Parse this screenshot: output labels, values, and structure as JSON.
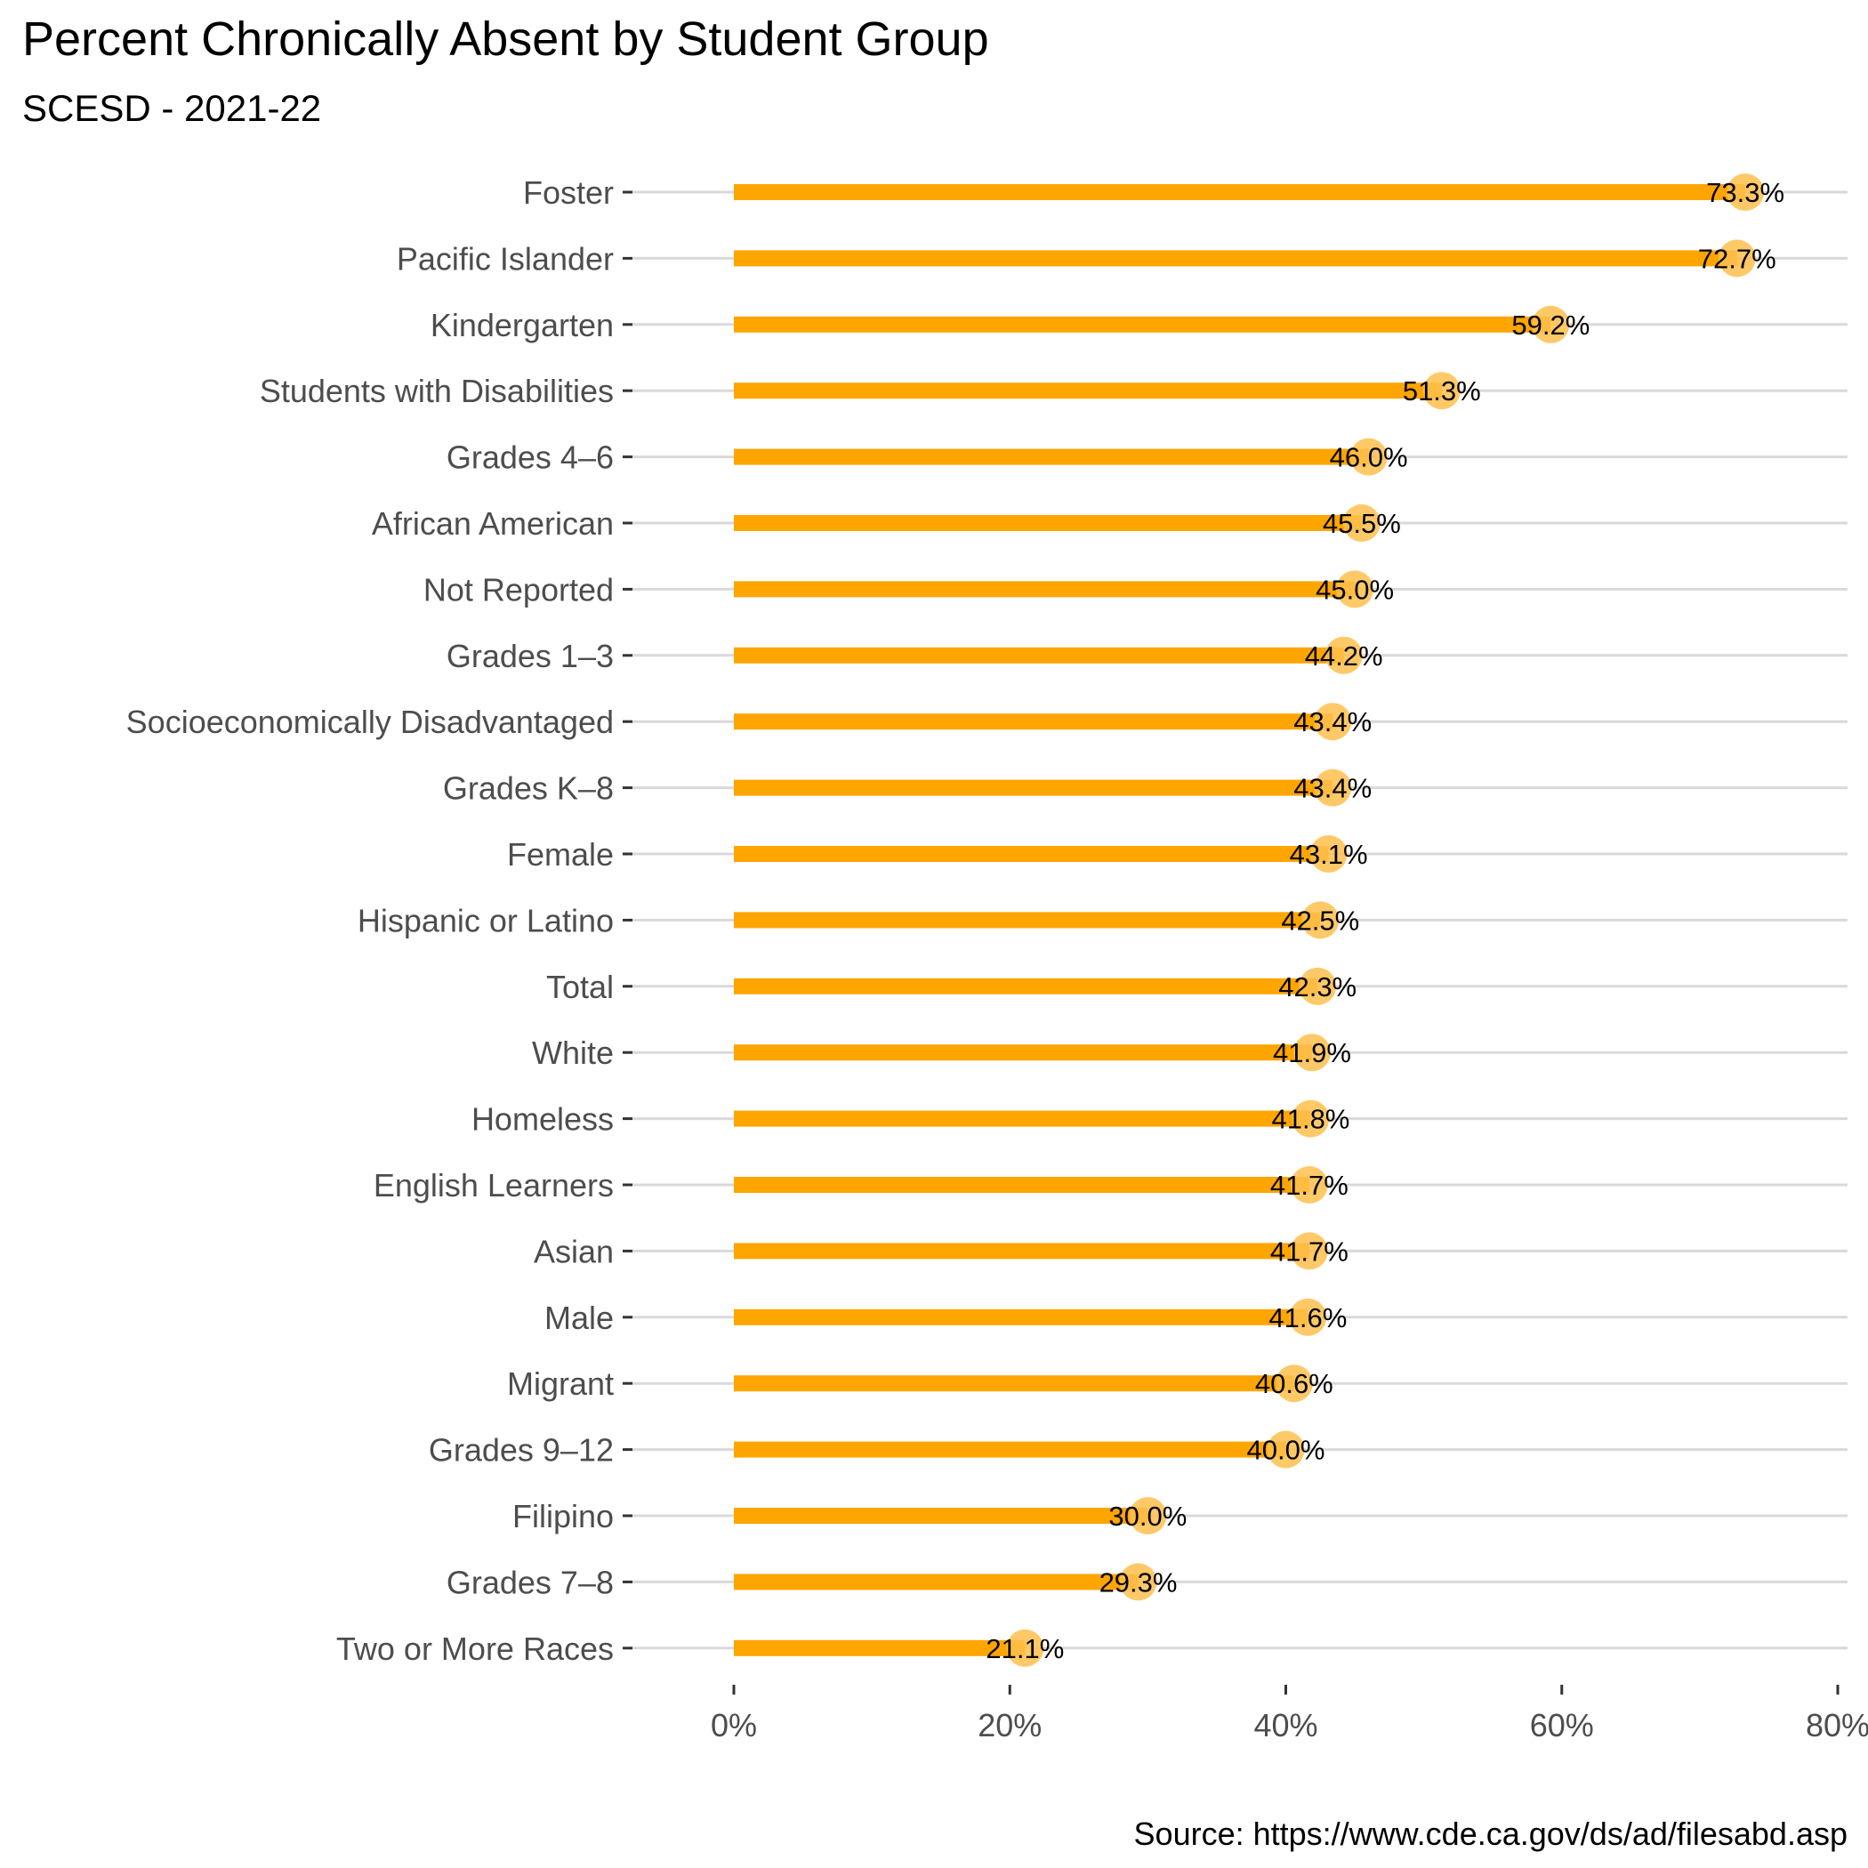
{
  "chart_data": {
    "type": "bar",
    "orientation": "horizontal",
    "title": "Percent Chronically Absent by Student Group",
    "subtitle": "SCESD - 2021-22",
    "caption": "Source: https://www.cde.ca.gov/ds/ad/filesabd.asp",
    "xlim": [
      0,
      80
    ],
    "x_ticks": [
      {
        "value": 0,
        "label": "0%"
      },
      {
        "value": 20,
        "label": "20%"
      },
      {
        "value": 40,
        "label": "40%"
      },
      {
        "value": 60,
        "label": "60%"
      },
      {
        "value": 80,
        "label": "80%"
      }
    ],
    "grid": "horizontal-major",
    "bar_color": "#FFA500",
    "point_color": "#FFC04D",
    "categories": [
      "Foster",
      "Pacific Islander",
      "Kindergarten",
      "Students with Disabilities",
      "Grades 4–6",
      "African American",
      "Not Reported",
      "Grades 1–3",
      "Socioeconomically Disadvantaged",
      "Grades K–8",
      "Female",
      "Hispanic or Latino",
      "Total",
      "White",
      "Homeless",
      "English Learners",
      "Asian",
      "Male",
      "Migrant",
      "Grades 9–12",
      "Filipino",
      "Grades 7–8",
      "Two or More Races"
    ],
    "values": [
      73.3,
      72.7,
      59.2,
      51.3,
      46.0,
      45.5,
      45.0,
      44.2,
      43.4,
      43.4,
      43.1,
      42.5,
      42.3,
      41.9,
      41.8,
      41.7,
      41.7,
      41.6,
      40.6,
      40.0,
      30.0,
      29.3,
      21.1
    ],
    "value_labels": [
      "73.3%",
      "72.7%",
      "59.2%",
      "51.3%",
      "46.0%",
      "45.5%",
      "45.0%",
      "44.2%",
      "43.4%",
      "43.4%",
      "43.1%",
      "42.5%",
      "42.3%",
      "41.9%",
      "41.8%",
      "41.7%",
      "41.7%",
      "41.6%",
      "40.6%",
      "40.0%",
      "30.0%",
      "29.3%",
      "21.1%"
    ]
  }
}
